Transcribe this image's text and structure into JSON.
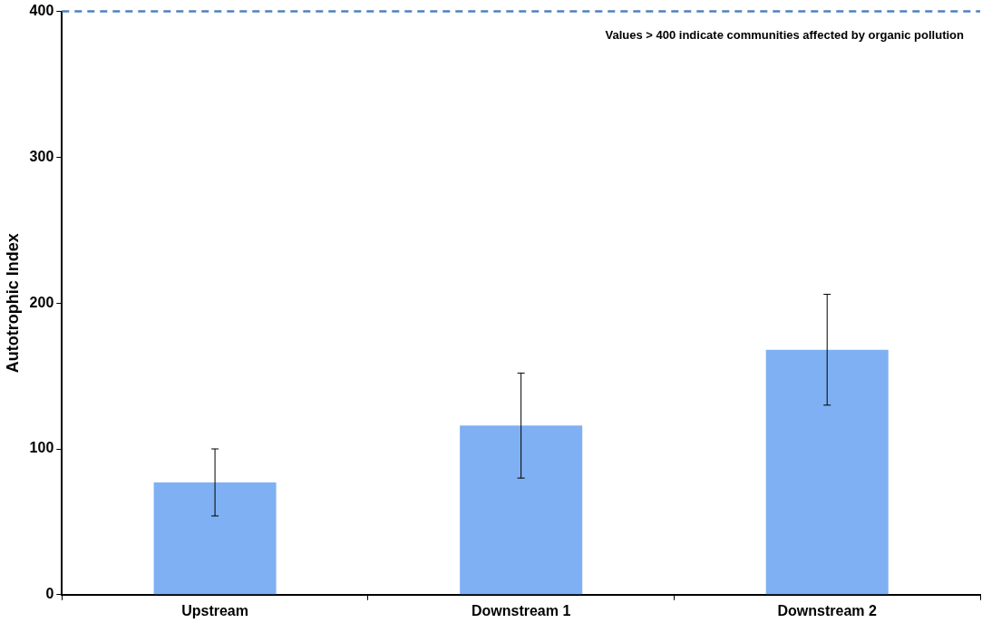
{
  "chart_data": {
    "type": "bar",
    "ylabel": "Autotrophic Index",
    "categories": [
      "Upstream",
      "Downstream 1",
      "Downstream 2"
    ],
    "values": [
      77,
      116,
      168
    ],
    "errors": [
      23,
      36,
      38
    ],
    "color": "#7fb0f3",
    "ylim": [
      0,
      400
    ],
    "yticks": [
      0,
      100,
      200,
      300,
      400
    ],
    "grid": false,
    "legend": false,
    "ref_lines": [
      {
        "axis": "y",
        "value": 400,
        "label": "Values > 400 indicate communities affected by organic pollution",
        "color": "#4f81bd",
        "line_style": "dashed"
      }
    ]
  }
}
